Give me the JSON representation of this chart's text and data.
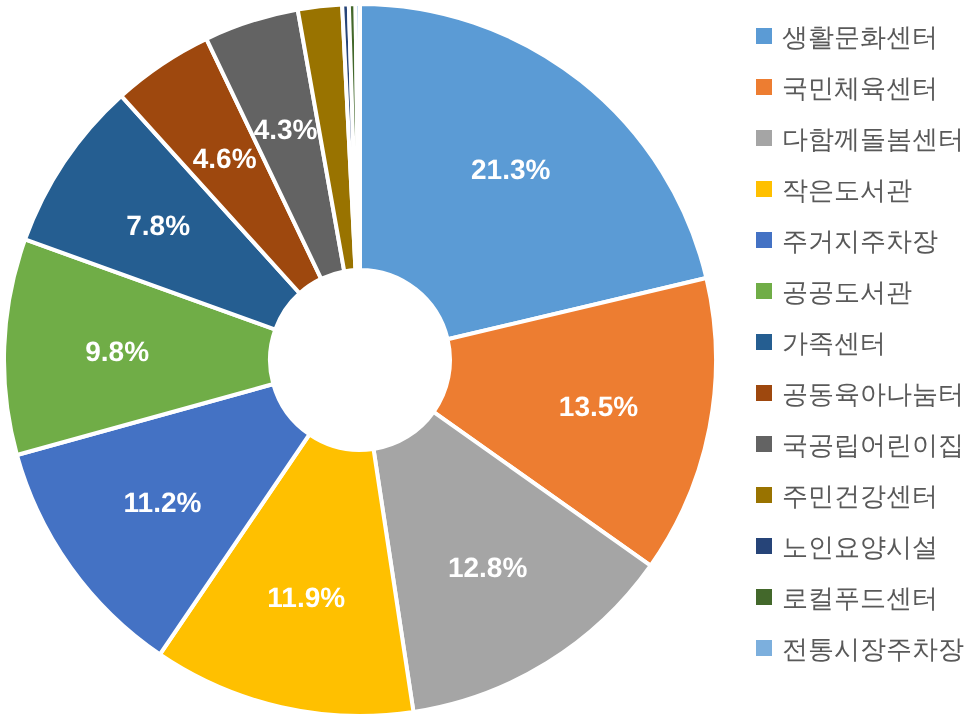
{
  "chart_data": {
    "type": "donut",
    "categories": [
      "생활문화센터",
      "국민체육센터",
      "다함께돌봄센터",
      "작은도서관",
      "주거지주차장",
      "공공도서관",
      "가족센터",
      "공동육아나눔터",
      "국공립어린이집",
      "주민건강센터",
      "노인요양시설",
      "로컬푸드센터",
      "전통시장주차장"
    ],
    "values": [
      21.3,
      13.5,
      12.8,
      11.9,
      11.2,
      9.8,
      7.8,
      4.6,
      4.3,
      2.0,
      0.3,
      0.3,
      0.2
    ],
    "colors": [
      "#5b9bd5",
      "#ed7d31",
      "#a5a5a5",
      "#ffc000",
      "#4472c4",
      "#70ad47",
      "#255e91",
      "#9e480e",
      "#636363",
      "#997300",
      "#264478",
      "#43682b",
      "#7cafdd"
    ],
    "value_labels": [
      "21.3%",
      "13.5%",
      "12.8%",
      "11.9%",
      "11.2%",
      "9.8%",
      "7.8%",
      "4.6%",
      "4.3%",
      null,
      null,
      null,
      null
    ],
    "legend": "right"
  }
}
